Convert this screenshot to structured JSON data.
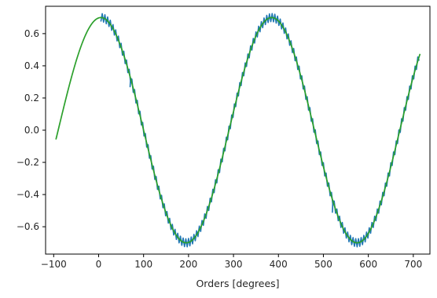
{
  "chart_data": {
    "type": "line",
    "title": "",
    "xlabel": "Orders [degrees]",
    "ylabel": "",
    "xlim": [
      -118,
      737
    ],
    "ylim": [
      -0.77,
      0.77
    ],
    "xticks": [
      -100,
      0,
      100,
      200,
      300,
      400,
      500,
      600,
      700
    ],
    "yticks": [
      -0.6,
      -0.4,
      -0.2,
      0.0,
      0.2,
      0.4,
      0.6
    ],
    "xtick_labels": [
      "−100",
      "0",
      "100",
      "200",
      "300",
      "400",
      "500",
      "600",
      "700"
    ],
    "ytick_labels": [
      "−0.6",
      "−0.4",
      "−0.2",
      "0.0",
      "0.2",
      "0.4",
      "0.6"
    ],
    "grid": false,
    "legend": "none",
    "series": [
      {
        "color": "#1f77b4",
        "style": "noisy",
        "amplitude": 0.7,
        "period": 380,
        "x_start": 5,
        "x_end": 715,
        "noise_amplitude": 0.025,
        "spikes": [
          {
            "x": 70,
            "y": 0.27
          },
          {
            "x": 520,
            "y": -0.51
          }
        ]
      },
      {
        "color": "#2ca02c",
        "style": "smooth",
        "amplitude": 0.7,
        "period": 380,
        "x_start": -95,
        "x_end": 715
      }
    ]
  },
  "colors": {
    "background": "#ffffff",
    "axes_edge": "#000000",
    "text": "#262626"
  }
}
